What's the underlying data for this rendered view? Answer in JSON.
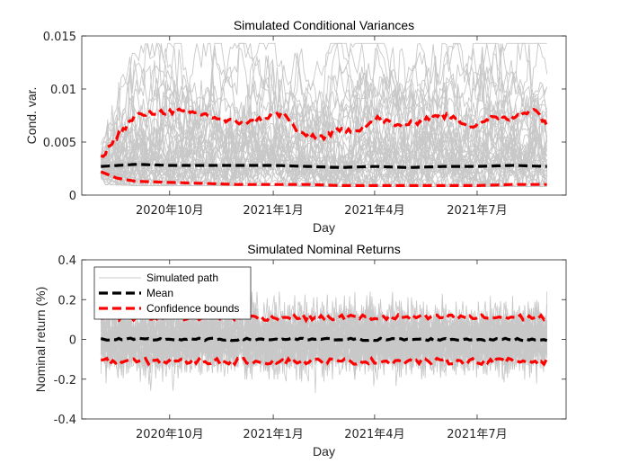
{
  "chart_data": [
    {
      "type": "line",
      "title": "Simulated Conditional Variances",
      "xlabel": "Day",
      "ylabel": "Cond. var.",
      "xlim": [
        "2020-07-15",
        "2021-09-18"
      ],
      "ylim": [
        0,
        0.015
      ],
      "yticks": [
        "0",
        "0.005",
        "0.01",
        "0.015"
      ],
      "xticks": [
        {
          "date": "2020-10-01",
          "label": "2020年10月"
        },
        {
          "date": "2021-01-01",
          "label": "2021年1月"
        },
        {
          "date": "2021-04-01",
          "label": "2021年4月"
        },
        {
          "date": "2021-07-01",
          "label": "2021年7月"
        }
      ],
      "grid": false,
      "series": [
        {
          "name": "Simulated path",
          "color": "#c8c8c8",
          "description_count": 100,
          "dates": [
            "2020-08-01",
            "2020-09-01",
            "2020-10-01",
            "2020-11-01",
            "2020-12-01",
            "2021-01-01",
            "2021-02-01",
            "2021-03-01",
            "2021-04-01",
            "2021-05-01",
            "2021-06-01",
            "2021-07-01",
            "2021-08-01",
            "2021-09-01"
          ],
          "typical_range_low": [
            0.0011,
            0.001,
            0.001,
            0.001,
            0.001,
            0.001,
            0.0009,
            0.0009,
            0.0009,
            0.0009,
            0.0009,
            0.0009,
            0.0009,
            0.0009
          ],
          "typical_range_high": [
            0.004,
            0.0072,
            0.0078,
            0.0076,
            0.0074,
            0.0072,
            0.0068,
            0.007,
            0.0072,
            0.007,
            0.0074,
            0.0076,
            0.0076,
            0.0074
          ]
        },
        {
          "name": "Mean",
          "color": "#000000",
          "dates": [
            "2020-08-01",
            "2020-09-01",
            "2020-10-01",
            "2020-11-01",
            "2020-12-01",
            "2021-01-01",
            "2021-02-01",
            "2021-03-01",
            "2021-04-01",
            "2021-05-01",
            "2021-06-01",
            "2021-07-01",
            "2021-08-01",
            "2021-09-01"
          ],
          "values": [
            0.0027,
            0.0029,
            0.0028,
            0.0028,
            0.0028,
            0.0028,
            0.0027,
            0.0026,
            0.0027,
            0.0026,
            0.0027,
            0.0027,
            0.0028,
            0.0027
          ]
        },
        {
          "name": "Confidence bounds (upper)",
          "color": "#ff0000",
          "dates": [
            "2020-08-01",
            "2020-08-15",
            "2020-09-01",
            "2020-09-20",
            "2020-10-10",
            "2020-11-01",
            "2020-11-20",
            "2020-12-10",
            "2020-12-25",
            "2021-01-10",
            "2021-01-25",
            "2021-02-15",
            "2021-03-01",
            "2021-03-20",
            "2021-04-05",
            "2021-04-20",
            "2021-05-10",
            "2021-05-25",
            "2021-06-10",
            "2021-06-25",
            "2021-07-15",
            "2021-08-01",
            "2021-08-20",
            "2021-09-01"
          ],
          "values": [
            0.0035,
            0.0055,
            0.0075,
            0.0078,
            0.0079,
            0.0076,
            0.007,
            0.0068,
            0.0073,
            0.0077,
            0.0057,
            0.0055,
            0.0061,
            0.0062,
            0.0073,
            0.0065,
            0.0069,
            0.0076,
            0.0073,
            0.0065,
            0.0073,
            0.0072,
            0.0082,
            0.0067
          ]
        },
        {
          "name": "Confidence bounds (lower)",
          "color": "#ff0000",
          "dates": [
            "2020-08-01",
            "2020-08-15",
            "2020-09-01",
            "2020-10-01",
            "2020-11-01",
            "2020-12-01",
            "2021-01-01",
            "2021-02-01",
            "2021-03-01",
            "2021-04-01",
            "2021-05-01",
            "2021-06-01",
            "2021-07-01",
            "2021-08-01",
            "2021-09-01"
          ],
          "values": [
            0.0022,
            0.0016,
            0.0013,
            0.0012,
            0.0011,
            0.001,
            0.001,
            0.001,
            0.0009,
            0.0009,
            0.0009,
            0.0009,
            0.0009,
            0.001,
            0.001
          ]
        }
      ]
    },
    {
      "type": "line",
      "title": "Simulated Nominal Returns",
      "xlabel": "Day",
      "ylabel": "Nominal return (%)",
      "xlim": [
        "2020-07-15",
        "2021-09-18"
      ],
      "ylim": [
        -0.4,
        0.4
      ],
      "yticks": [
        "-0.4",
        "-0.2",
        "0",
        "0.2",
        "0.4"
      ],
      "xticks": [
        {
          "date": "2020-10-01",
          "label": "2020年10月"
        },
        {
          "date": "2021-01-01",
          "label": "2021年1月"
        },
        {
          "date": "2021-04-01",
          "label": "2021年4月"
        },
        {
          "date": "2021-07-01",
          "label": "2021年7月"
        }
      ],
      "grid": false,
      "legend": {
        "position": "top-left",
        "entries": [
          {
            "label": "Simulated path",
            "color": "#c8c8c8",
            "style": "solid"
          },
          {
            "label": "Mean",
            "color": "#000000",
            "style": "dashed"
          },
          {
            "label": "Confidence bounds",
            "color": "#ff0000",
            "style": "dashed"
          }
        ]
      },
      "series": [
        {
          "name": "Simulated path",
          "color": "#c8c8c8",
          "typical_range": [
            -0.2,
            0.2
          ]
        },
        {
          "name": "Mean",
          "color": "#000000",
          "values_constant": 0.0
        },
        {
          "name": "Confidence bounds (upper)",
          "color": "#ff0000",
          "values_constant": 0.11
        },
        {
          "name": "Confidence bounds (lower)",
          "color": "#ff0000",
          "values_constant": -0.11
        }
      ]
    }
  ]
}
